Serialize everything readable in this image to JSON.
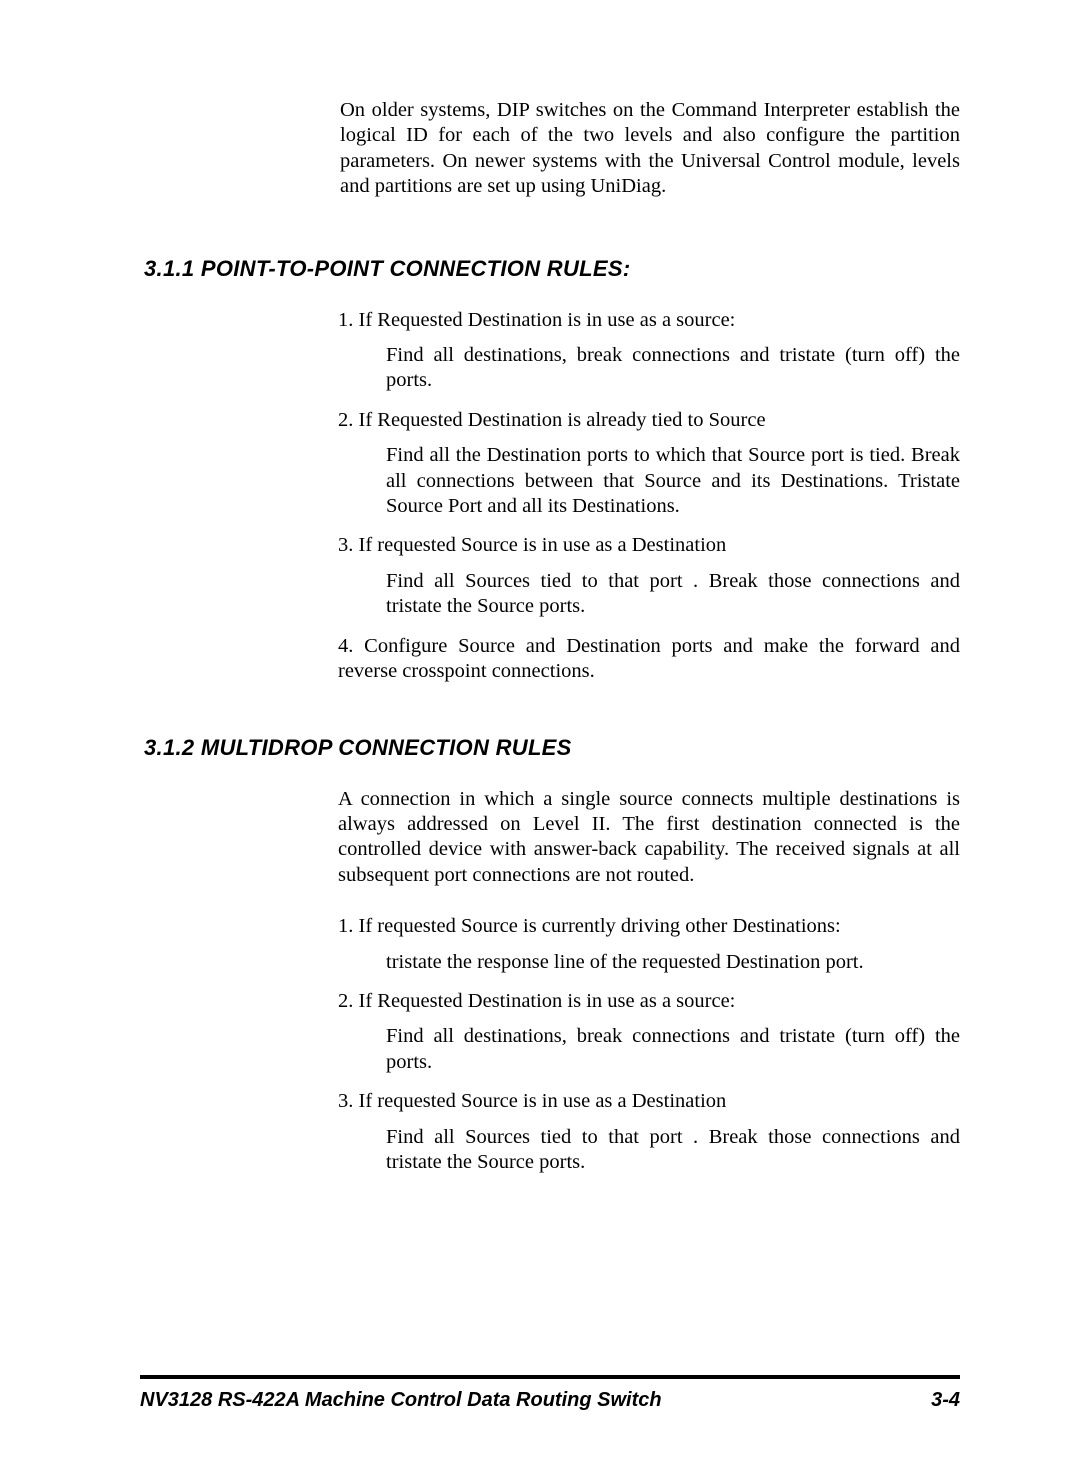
{
  "intro": "On older systems, DIP switches on the Command Interpreter establish the logical ID for each of the two levels and also configure the partition parameters. On newer systems with the Universal Control module, levels and partitions are set up using UniDiag.",
  "section1": {
    "heading": "3.1.1  POINT-TO-POINT CONNECTION RULES:",
    "items": {
      "i1": "1. If Requested Destination is in use as a source:",
      "s1": "Find all destinations, break connections and tristate (turn off) the ports.",
      "i2": "2.  If Requested Destination is already tied to Source",
      "s2": "Find all the Destination ports to which that Source port is tied.  Break all  connections between that Source and its Destinations. Tristate Source Port  and all its Destinations.",
      "i3": "3.  If requested Source is in use as a Destination",
      "s3": "Find all Sources tied to that port . Break those connections and tristate the Source ports.",
      "i4": "4. Configure Source and Destination ports and make the forward and reverse crosspoint connections."
    }
  },
  "section2": {
    "heading": "3.1.2  MULTIDROP CONNECTION RULES",
    "intro": "A connection in which a single source connects multiple destinations is always addressed on Level II.  The first  destination connected is the controlled device with answer-back capability.  The received signals at all subsequent port connections are not routed.",
    "items": {
      "i1": "1. If requested Source is currently driving other Destinations:",
      "s1": "tristate the response line of the requested Destination port.",
      "i2": "2. If Requested Destination is in use as a source:",
      "s2": "Find all destinations, break connections and tristate (turn off) the ports.",
      "i3": "3.  If requested Source is in use as a Destination",
      "s3": "Find all Sources tied to that port . Break those connections and tristate the Source ports."
    }
  },
  "footer": {
    "title": "NV3128 RS-422A Machine Control Data Routing Switch",
    "page": "3-4"
  }
}
